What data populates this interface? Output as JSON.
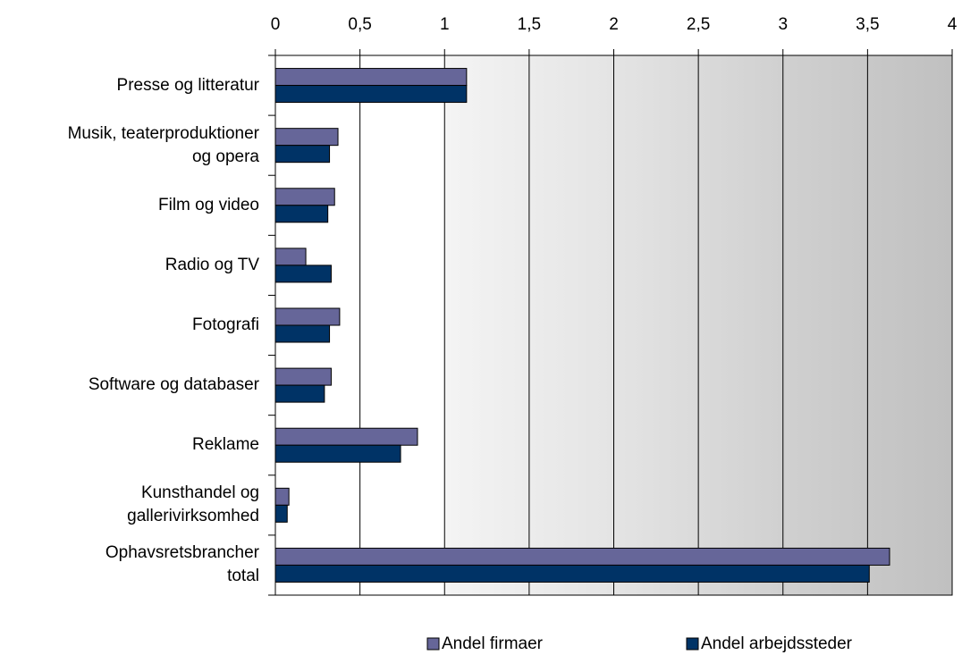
{
  "chart_data": {
    "type": "hbar",
    "categories": [
      "Presse og litteratur",
      "Musik, teaterproduktioner\nog opera",
      "Film og video",
      "Radio og TV",
      "Fotografi",
      "Software og databaser",
      "Reklame",
      "Kunsthandel og\ngallerivirksomhed",
      "Ophavsretsbrancher\ntotal"
    ],
    "series": [
      {
        "name": "Andel firmaer",
        "color": "#666699",
        "values": [
          1.13,
          0.37,
          0.35,
          0.18,
          0.38,
          0.33,
          0.84,
          0.08,
          3.63
        ]
      },
      {
        "name": "Andel arbejdssteder",
        "color": "#003366",
        "values": [
          1.13,
          0.32,
          0.31,
          0.33,
          0.32,
          0.29,
          0.74,
          0.07,
          3.51
        ]
      }
    ],
    "xlim": [
      0,
      4
    ],
    "xticks": [
      0,
      {
        "value": 0.5,
        "label": "0,5"
      },
      1,
      {
        "value": 1.5,
        "label": "1,5"
      },
      2,
      {
        "value": 2.5,
        "label": "2,5"
      },
      3,
      {
        "value": 3.5,
        "label": "3,5"
      },
      4
    ],
    "grid": true,
    "legend": "bottom"
  }
}
